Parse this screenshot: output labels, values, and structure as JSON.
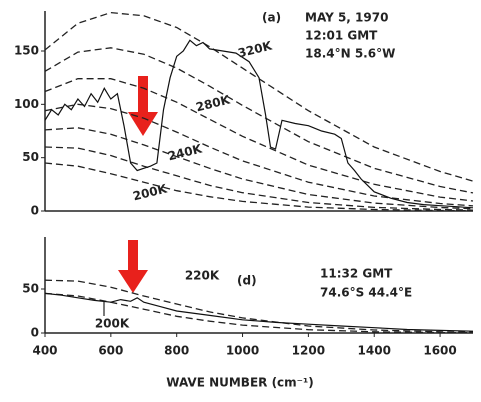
{
  "chart_data": [
    {
      "type": "line",
      "annotations": [
        "(a)",
        "MAY 5, 1970",
        "12:01 GMT",
        "18.4°N   5.6°W"
      ],
      "x": [
        400,
        500,
        600,
        700,
        800,
        900,
        1000,
        1200,
        1400,
        1600,
        1700
      ],
      "xlim": [
        400,
        1700
      ],
      "ylim": [
        0,
        180
      ],
      "yticks": [
        0,
        50,
        100,
        150
      ],
      "series": [
        {
          "name": "320K",
          "color": "#222222",
          "dash": true,
          "values": [
            151,
            176,
            186,
            183,
            172,
            154,
            134,
            94,
            60,
            37,
            28
          ]
        },
        {
          "color": "#222222",
          "dash": true,
          "values": [
            131,
            149,
            153,
            147,
            134,
            117,
            99,
            65,
            40,
            23,
            17
          ]
        },
        {
          "name": "280K",
          "color": "#222222",
          "dash": true,
          "values": [
            112,
            124,
            124,
            115,
            102,
            86,
            70,
            43,
            25,
            13,
            9.4
          ]
        },
        {
          "color": "#222222",
          "dash": true,
          "values": [
            94,
            100,
            96,
            87,
            74,
            60,
            47,
            27,
            14.1,
            7.0,
            4.8
          ]
        },
        {
          "name": "240K",
          "color": "#222222",
          "dash": true,
          "values": [
            76,
            78,
            72,
            62,
            51,
            40,
            30,
            15.5,
            7.4,
            3.3,
            2.2
          ]
        },
        {
          "color": "#222222",
          "dash": true,
          "values": [
            60,
            59,
            52,
            42,
            33,
            24,
            17.2,
            8.0,
            3.4,
            1.4,
            0.87
          ]
        },
        {
          "name": "200K",
          "color": "#222222",
          "dash": true,
          "values": [
            45,
            42,
            35,
            27,
            19,
            13.4,
            9.0,
            3.7,
            1.4,
            0.49,
            0.29
          ]
        },
        {
          "color": "#111111",
          "dash": false,
          "x": [
            400,
            420,
            440,
            460,
            480,
            500,
            520,
            540,
            560,
            580,
            600,
            620,
            640,
            660,
            680,
            700,
            720,
            740,
            760,
            780,
            800,
            820,
            840,
            860,
            880,
            900,
            940,
            980,
            1020,
            1050,
            1070,
            1085,
            1100,
            1120,
            1160,
            1200,
            1240,
            1280,
            1300,
            1320,
            1340,
            1360,
            1400,
            1450,
            1500,
            1550,
            1600,
            1650,
            1700
          ],
          "values": [
            85,
            95,
            90,
            100,
            95,
            105,
            98,
            110,
            102,
            115,
            105,
            110,
            80,
            45,
            38,
            40,
            42,
            45,
            95,
            125,
            145,
            150,
            160,
            155,
            158,
            152,
            150,
            148,
            140,
            125,
            90,
            60,
            58,
            85,
            82,
            80,
            75,
            72,
            68,
            45,
            38,
            30,
            18,
            12,
            8,
            6,
            5,
            4,
            3
          ]
        }
      ]
    },
    {
      "type": "line",
      "annotations": [
        "(d)",
        "11:32 GMT",
        "74.6°S 44.4°E"
      ],
      "x_label": "WAVE NUMBER (cm⁻¹)",
      "x": [
        400,
        500,
        600,
        700,
        800,
        900,
        1000,
        1200,
        1400,
        1600,
        1700
      ],
      "xlim": [
        400,
        1700
      ],
      "ylim": [
        0,
        100
      ],
      "yticks": [
        0,
        50
      ],
      "xticks": [
        400,
        600,
        800,
        1000,
        1200,
        1400,
        1600
      ],
      "series": [
        {
          "name": "220K",
          "color": "#222222",
          "dash": true,
          "values": [
            60,
            59,
            52,
            42,
            33,
            24,
            17.2,
            8.0,
            3.4,
            1.4,
            0.87
          ]
        },
        {
          "name": "200K",
          "color": "#222222",
          "dash": true,
          "values": [
            45,
            42,
            35,
            27,
            19,
            13.4,
            9.0,
            3.7,
            1.4,
            0.49,
            0.29
          ]
        },
        {
          "color": "#111111",
          "dash": false,
          "x": [
            400,
            450,
            500,
            550,
            600,
            630,
            660,
            680,
            700,
            750,
            800,
            900,
            1000,
            1100,
            1200,
            1300,
            1400,
            1500,
            1600,
            1700
          ],
          "values": [
            45,
            43,
            40,
            37,
            35,
            38,
            36,
            40,
            35,
            30,
            25,
            20,
            15,
            12,
            10,
            8,
            6,
            4,
            3,
            2
          ]
        }
      ]
    }
  ]
}
